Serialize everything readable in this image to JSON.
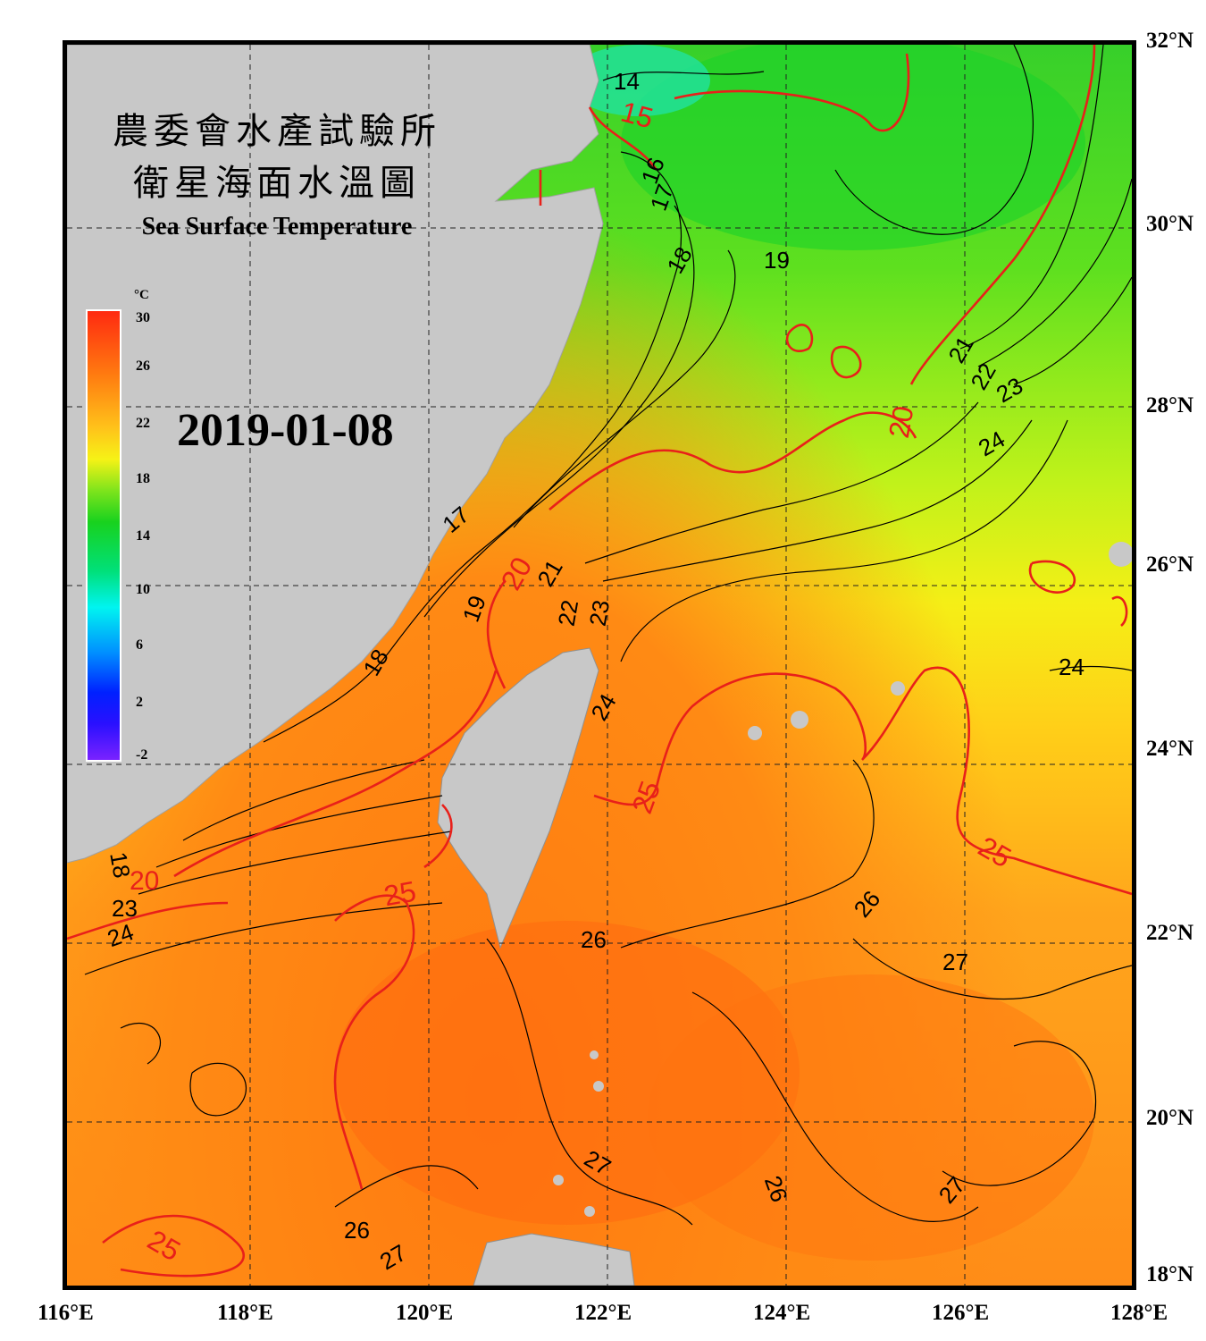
{
  "title_zh_1": "農委會水產試驗所",
  "title_zh_2": "衛星海面水溫圖",
  "title_en": "Sea Surface Temperature",
  "date": "2019-01-08",
  "colorbar": {
    "unit": "°C",
    "ticks": [
      "30",
      "26",
      "22",
      "18",
      "14",
      "10",
      "6",
      "2",
      "-2"
    ]
  },
  "lon_labels": [
    "116°E",
    "118°E",
    "120°E",
    "122°E",
    "124°E",
    "126°E",
    "128°E"
  ],
  "lat_labels": [
    "32°N",
    "30°N",
    "28°N",
    "26°N",
    "24°N",
    "22°N",
    "20°N",
    "18°N"
  ],
  "contour_labels": {
    "black": [
      "14",
      "16",
      "17",
      "18",
      "19",
      "21",
      "22",
      "23",
      "24",
      "17",
      "21",
      "22",
      "23",
      "19",
      "18",
      "24",
      "26",
      "27",
      "26",
      "27",
      "26",
      "27",
      "26",
      "27",
      "18",
      "23",
      "24",
      "24"
    ],
    "red": [
      "15",
      "20",
      "20",
      "25",
      "25",
      "25",
      "25",
      "20"
    ]
  }
}
